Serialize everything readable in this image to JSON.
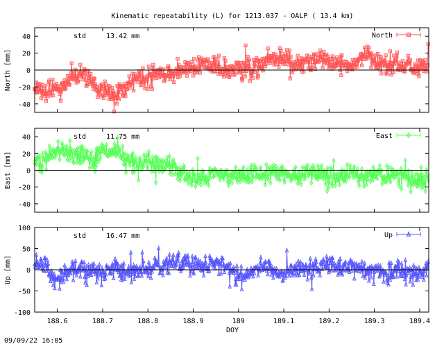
{
  "figure": {
    "title": "Kinematic repeatability (L) for 1213.037 - OALP  ( 13.4 km)",
    "xlabel": "DOY",
    "timestamp": "09/09/22 16:05"
  },
  "chart_data": [
    {
      "type": "line",
      "series_name": "North",
      "ylabel": "North [mm]",
      "std_label": "std",
      "std_value": "13.42 mm",
      "color": "#ff5555",
      "marker": "square",
      "xlim": [
        188.55,
        189.42
      ],
      "ylim": [
        -50,
        50
      ],
      "yticks": [
        -40,
        -20,
        0,
        20,
        40
      ],
      "xticks": [
        188.6,
        188.7,
        188.8,
        188.9,
        189.0,
        189.1,
        189.2,
        189.3,
        189.4
      ],
      "trend_x": [
        188.55,
        188.57,
        188.6,
        188.63,
        188.66,
        188.68,
        188.7,
        188.73,
        188.75,
        188.78,
        188.8,
        188.82,
        188.85,
        188.88,
        188.9,
        188.93,
        188.95,
        188.98,
        189.0,
        189.03,
        189.05,
        189.08,
        189.1,
        189.13,
        189.15,
        189.18,
        189.2,
        189.23,
        189.25,
        189.28,
        189.3,
        189.33,
        189.35,
        189.38,
        189.42
      ],
      "trend_y": [
        -15,
        -28,
        -22,
        -10,
        -5,
        -18,
        -25,
        -32,
        -20,
        -8,
        -12,
        -5,
        -6,
        2,
        4,
        8,
        5,
        0,
        3,
        2,
        8,
        15,
        12,
        5,
        10,
        14,
        12,
        8,
        6,
        20,
        10,
        4,
        8,
        5,
        6
      ]
    },
    {
      "type": "line",
      "series_name": "East",
      "ylabel": "East [mm]",
      "std_label": "std",
      "std_value": "11.75 mm",
      "color": "#55ff55",
      "marker": "diamond",
      "xlim": [
        188.55,
        189.42
      ],
      "ylim": [
        -50,
        50
      ],
      "yticks": [
        -40,
        -20,
        0,
        20,
        40
      ],
      "xticks": [
        188.6,
        188.7,
        188.8,
        188.9,
        189.0,
        189.1,
        189.2,
        189.3,
        189.4
      ],
      "trend_x": [
        188.55,
        188.57,
        188.6,
        188.63,
        188.66,
        188.68,
        188.7,
        188.73,
        188.75,
        188.78,
        188.8,
        188.82,
        188.85,
        188.88,
        188.9,
        188.93,
        188.95,
        188.98,
        189.0,
        189.03,
        189.05,
        189.08,
        189.1,
        189.13,
        189.15,
        189.18,
        189.2,
        189.23,
        189.25,
        189.28,
        189.3,
        189.33,
        189.35,
        189.38,
        189.42
      ],
      "trend_y": [
        5,
        10,
        25,
        18,
        20,
        8,
        28,
        18,
        15,
        8,
        12,
        6,
        4,
        -5,
        -10,
        -8,
        -4,
        -6,
        -8,
        -5,
        -6,
        -4,
        -5,
        -8,
        -4,
        -6,
        -5,
        -8,
        -4,
        -10,
        -5,
        -8,
        -6,
        -10,
        -12
      ]
    },
    {
      "type": "line",
      "series_name": "Up",
      "ylabel": "Up [mm]",
      "std_label": "std",
      "std_value": "16.47 mm",
      "color": "#5555ff",
      "marker": "triangle",
      "xlim": [
        188.55,
        189.42
      ],
      "ylim": [
        -100,
        100
      ],
      "yticks": [
        -100,
        -50,
        0,
        50,
        100
      ],
      "xticks": [
        188.6,
        188.7,
        188.8,
        188.9,
        189.0,
        189.1,
        189.2,
        189.3,
        189.4
      ],
      "trend_x": [
        188.55,
        188.57,
        188.6,
        188.63,
        188.66,
        188.68,
        188.7,
        188.73,
        188.75,
        188.78,
        188.8,
        188.82,
        188.85,
        188.88,
        188.9,
        188.93,
        188.95,
        188.98,
        189.0,
        189.03,
        189.05,
        189.08,
        189.1,
        189.13,
        189.15,
        189.18,
        189.2,
        189.23,
        189.25,
        189.28,
        189.3,
        189.33,
        189.35,
        189.38,
        189.42
      ],
      "trend_y": [
        10,
        15,
        -25,
        5,
        -5,
        0,
        -10,
        5,
        -5,
        0,
        -5,
        5,
        15,
        20,
        10,
        5,
        15,
        5,
        -20,
        -5,
        10,
        -5,
        -10,
        0,
        -5,
        10,
        15,
        5,
        10,
        0,
        -5,
        -15,
        5,
        -10,
        5
      ]
    }
  ]
}
